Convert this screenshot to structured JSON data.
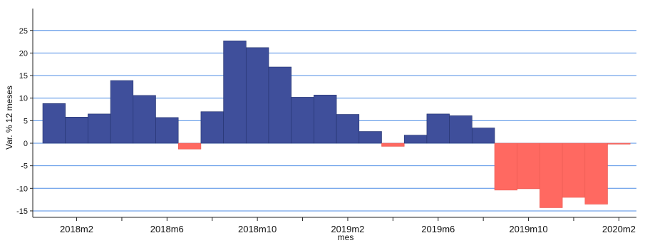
{
  "chart_data": {
    "type": "bar",
    "xlabel": "mes",
    "ylabel": "Var. % 12 meses",
    "ylim": [
      -16,
      30
    ],
    "yticks": [
      -15,
      -10,
      -5,
      0,
      5,
      10,
      15,
      20,
      25
    ],
    "ytick_labels": [
      "-15",
      "-10",
      "-5",
      "0",
      "5",
      "10",
      "15",
      "20",
      "25"
    ],
    "categories": [
      "2018m1",
      "2018m2",
      "2018m3",
      "2018m4",
      "2018m5",
      "2018m6",
      "2018m7",
      "2018m8",
      "2018m9",
      "2018m10",
      "2018m11",
      "2018m12",
      "2019m1",
      "2019m2",
      "2019m3",
      "2019m4",
      "2019m5",
      "2019m6",
      "2019m7",
      "2019m8",
      "2019m9",
      "2019m10",
      "2019m11",
      "2019m12",
      "2020m1",
      "2020m2"
    ],
    "values": [
      8.8,
      5.8,
      6.5,
      13.9,
      10.6,
      5.7,
      -1.3,
      7.0,
      22.7,
      21.2,
      16.9,
      10.2,
      10.7,
      6.4,
      2.6,
      -0.7,
      1.8,
      6.5,
      6.1,
      3.4,
      -10.4,
      -10.1,
      -14.3,
      -12.0,
      -13.5,
      -0.2
    ],
    "xtick_labels": [
      "2018m2",
      "2018m6",
      "2018m10",
      "2019m2",
      "2019m6",
      "2019m10",
      "2020m2"
    ],
    "grid": true,
    "colors": {
      "positive": "#3f4f9b",
      "negative": "#ff6961",
      "grid": "#4f8ee6",
      "axis": "#222222"
    }
  }
}
